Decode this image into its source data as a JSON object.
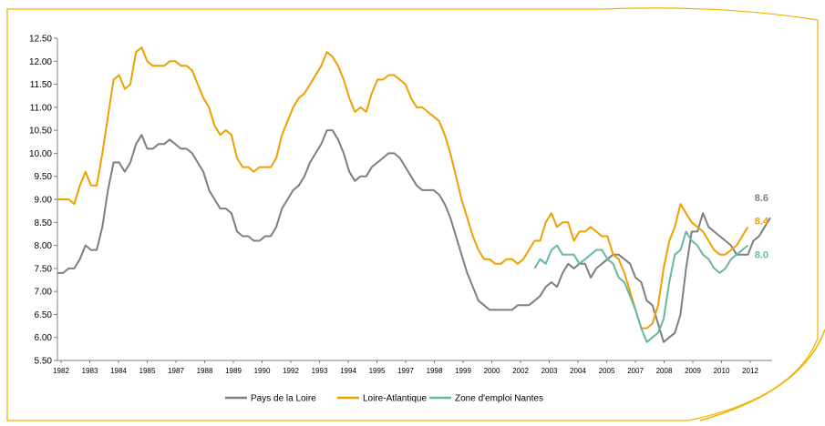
{
  "chart_data": {
    "type": "line",
    "xlabel": "",
    "ylabel": "",
    "ylim": [
      5.5,
      12.5
    ],
    "yticks": [
      "12.50",
      "12.00",
      "11.50",
      "11.00",
      "10.50",
      "10.00",
      "9.50",
      "9.00",
      "8.50",
      "8.00",
      "7.50",
      "7.00",
      "6.50",
      "6.00",
      "5.50"
    ],
    "x_tick_labels": [
      "1982",
      "1983",
      "1984",
      "1985",
      "1987",
      "1988",
      "1989",
      "1990",
      "1992",
      "1993",
      "1994",
      "1995",
      "1997",
      "1998",
      "1999",
      "2000",
      "2002",
      "2003",
      "2004",
      "2005",
      "2007",
      "2008",
      "2009",
      "2010",
      "2012"
    ],
    "grid": false,
    "legend_position": "bottom",
    "series": [
      {
        "name": "Pays de la Loire",
        "color": "#7f7f7f",
        "end_label": "8.6",
        "start": 0,
        "values": [
          7.4,
          7.4,
          7.5,
          7.5,
          7.7,
          8.0,
          7.9,
          7.9,
          8.4,
          9.2,
          9.8,
          9.8,
          9.6,
          9.8,
          10.2,
          10.4,
          10.1,
          10.1,
          10.2,
          10.2,
          10.3,
          10.2,
          10.1,
          10.1,
          10.0,
          9.8,
          9.6,
          9.2,
          9.0,
          8.8,
          8.8,
          8.7,
          8.3,
          8.2,
          8.2,
          8.1,
          8.1,
          8.2,
          8.2,
          8.4,
          8.8,
          9.0,
          9.2,
          9.3,
          9.5,
          9.8,
          10.0,
          10.2,
          10.5,
          10.5,
          10.3,
          10.0,
          9.6,
          9.4,
          9.5,
          9.5,
          9.7,
          9.8,
          9.9,
          10.0,
          10.0,
          9.9,
          9.7,
          9.5,
          9.3,
          9.2,
          9.2,
          9.2,
          9.1,
          8.9,
          8.6,
          8.2,
          7.8,
          7.4,
          7.1,
          6.8,
          6.7,
          6.6,
          6.6,
          6.6,
          6.6,
          6.6,
          6.7,
          6.7,
          6.7,
          6.8,
          6.9,
          7.1,
          7.2,
          7.1,
          7.4,
          7.6,
          7.5,
          7.6,
          7.6,
          7.3,
          7.5,
          7.6,
          7.7,
          7.8,
          7.8,
          7.7,
          7.6,
          7.3,
          7.2,
          6.8,
          6.7,
          6.3,
          5.9,
          6.0,
          6.1,
          6.5,
          7.5,
          8.3,
          8.3,
          8.7,
          8.4,
          8.3,
          8.2,
          8.1,
          8.0,
          7.8,
          7.8,
          7.8,
          8.1,
          8.2,
          8.4,
          8.6
        ]
      },
      {
        "name": "Loire-Atlantique",
        "color": "#f0a000",
        "end_label": "8.4",
        "start": 0,
        "values": [
          9.0,
          9.0,
          9.0,
          8.9,
          9.3,
          9.6,
          9.3,
          9.3,
          10.0,
          10.8,
          11.6,
          11.7,
          11.4,
          11.5,
          12.2,
          12.3,
          12.0,
          11.9,
          11.9,
          11.9,
          12.0,
          12.0,
          11.9,
          11.9,
          11.8,
          11.5,
          11.2,
          11.0,
          10.6,
          10.4,
          10.5,
          10.4,
          9.9,
          9.7,
          9.7,
          9.6,
          9.7,
          9.7,
          9.7,
          9.9,
          10.4,
          10.7,
          11.0,
          11.2,
          11.3,
          11.5,
          11.7,
          11.9,
          12.2,
          12.1,
          11.9,
          11.6,
          11.2,
          10.9,
          11.0,
          10.9,
          11.3,
          11.6,
          11.6,
          11.7,
          11.7,
          11.6,
          11.5,
          11.2,
          11.0,
          11.0,
          10.9,
          10.8,
          10.7,
          10.4,
          10.0,
          9.5,
          9.0,
          8.6,
          8.2,
          7.9,
          7.7,
          7.7,
          7.6,
          7.6,
          7.7,
          7.7,
          7.6,
          7.7,
          7.9,
          8.1,
          8.1,
          8.5,
          8.7,
          8.4,
          8.5,
          8.5,
          8.1,
          8.3,
          8.3,
          8.4,
          8.3,
          8.2,
          8.2,
          7.8,
          7.7,
          7.4,
          7.0,
          6.6,
          6.2,
          6.2,
          6.3,
          6.7,
          7.5,
          8.1,
          8.4,
          8.9,
          8.7,
          8.5,
          8.4,
          8.3,
          8.1,
          7.9,
          7.8,
          7.8,
          7.9,
          8.0,
          8.2,
          8.4
        ]
      },
      {
        "name": "Zone d'emploi Nantes",
        "color": "#66b8a6",
        "end_label": "8.0",
        "start": 85,
        "values": [
          7.5,
          7.7,
          7.6,
          7.9,
          8.0,
          7.8,
          7.8,
          7.8,
          7.6,
          7.7,
          7.8,
          7.9,
          7.9,
          7.7,
          7.6,
          7.3,
          7.2,
          6.9,
          6.6,
          6.2,
          5.9,
          6.0,
          6.1,
          6.4,
          7.2,
          7.8,
          7.9,
          8.3,
          8.1,
          8.0,
          7.8,
          7.7,
          7.5,
          7.4,
          7.5,
          7.7,
          7.8,
          7.9,
          8.0
        ]
      }
    ]
  }
}
